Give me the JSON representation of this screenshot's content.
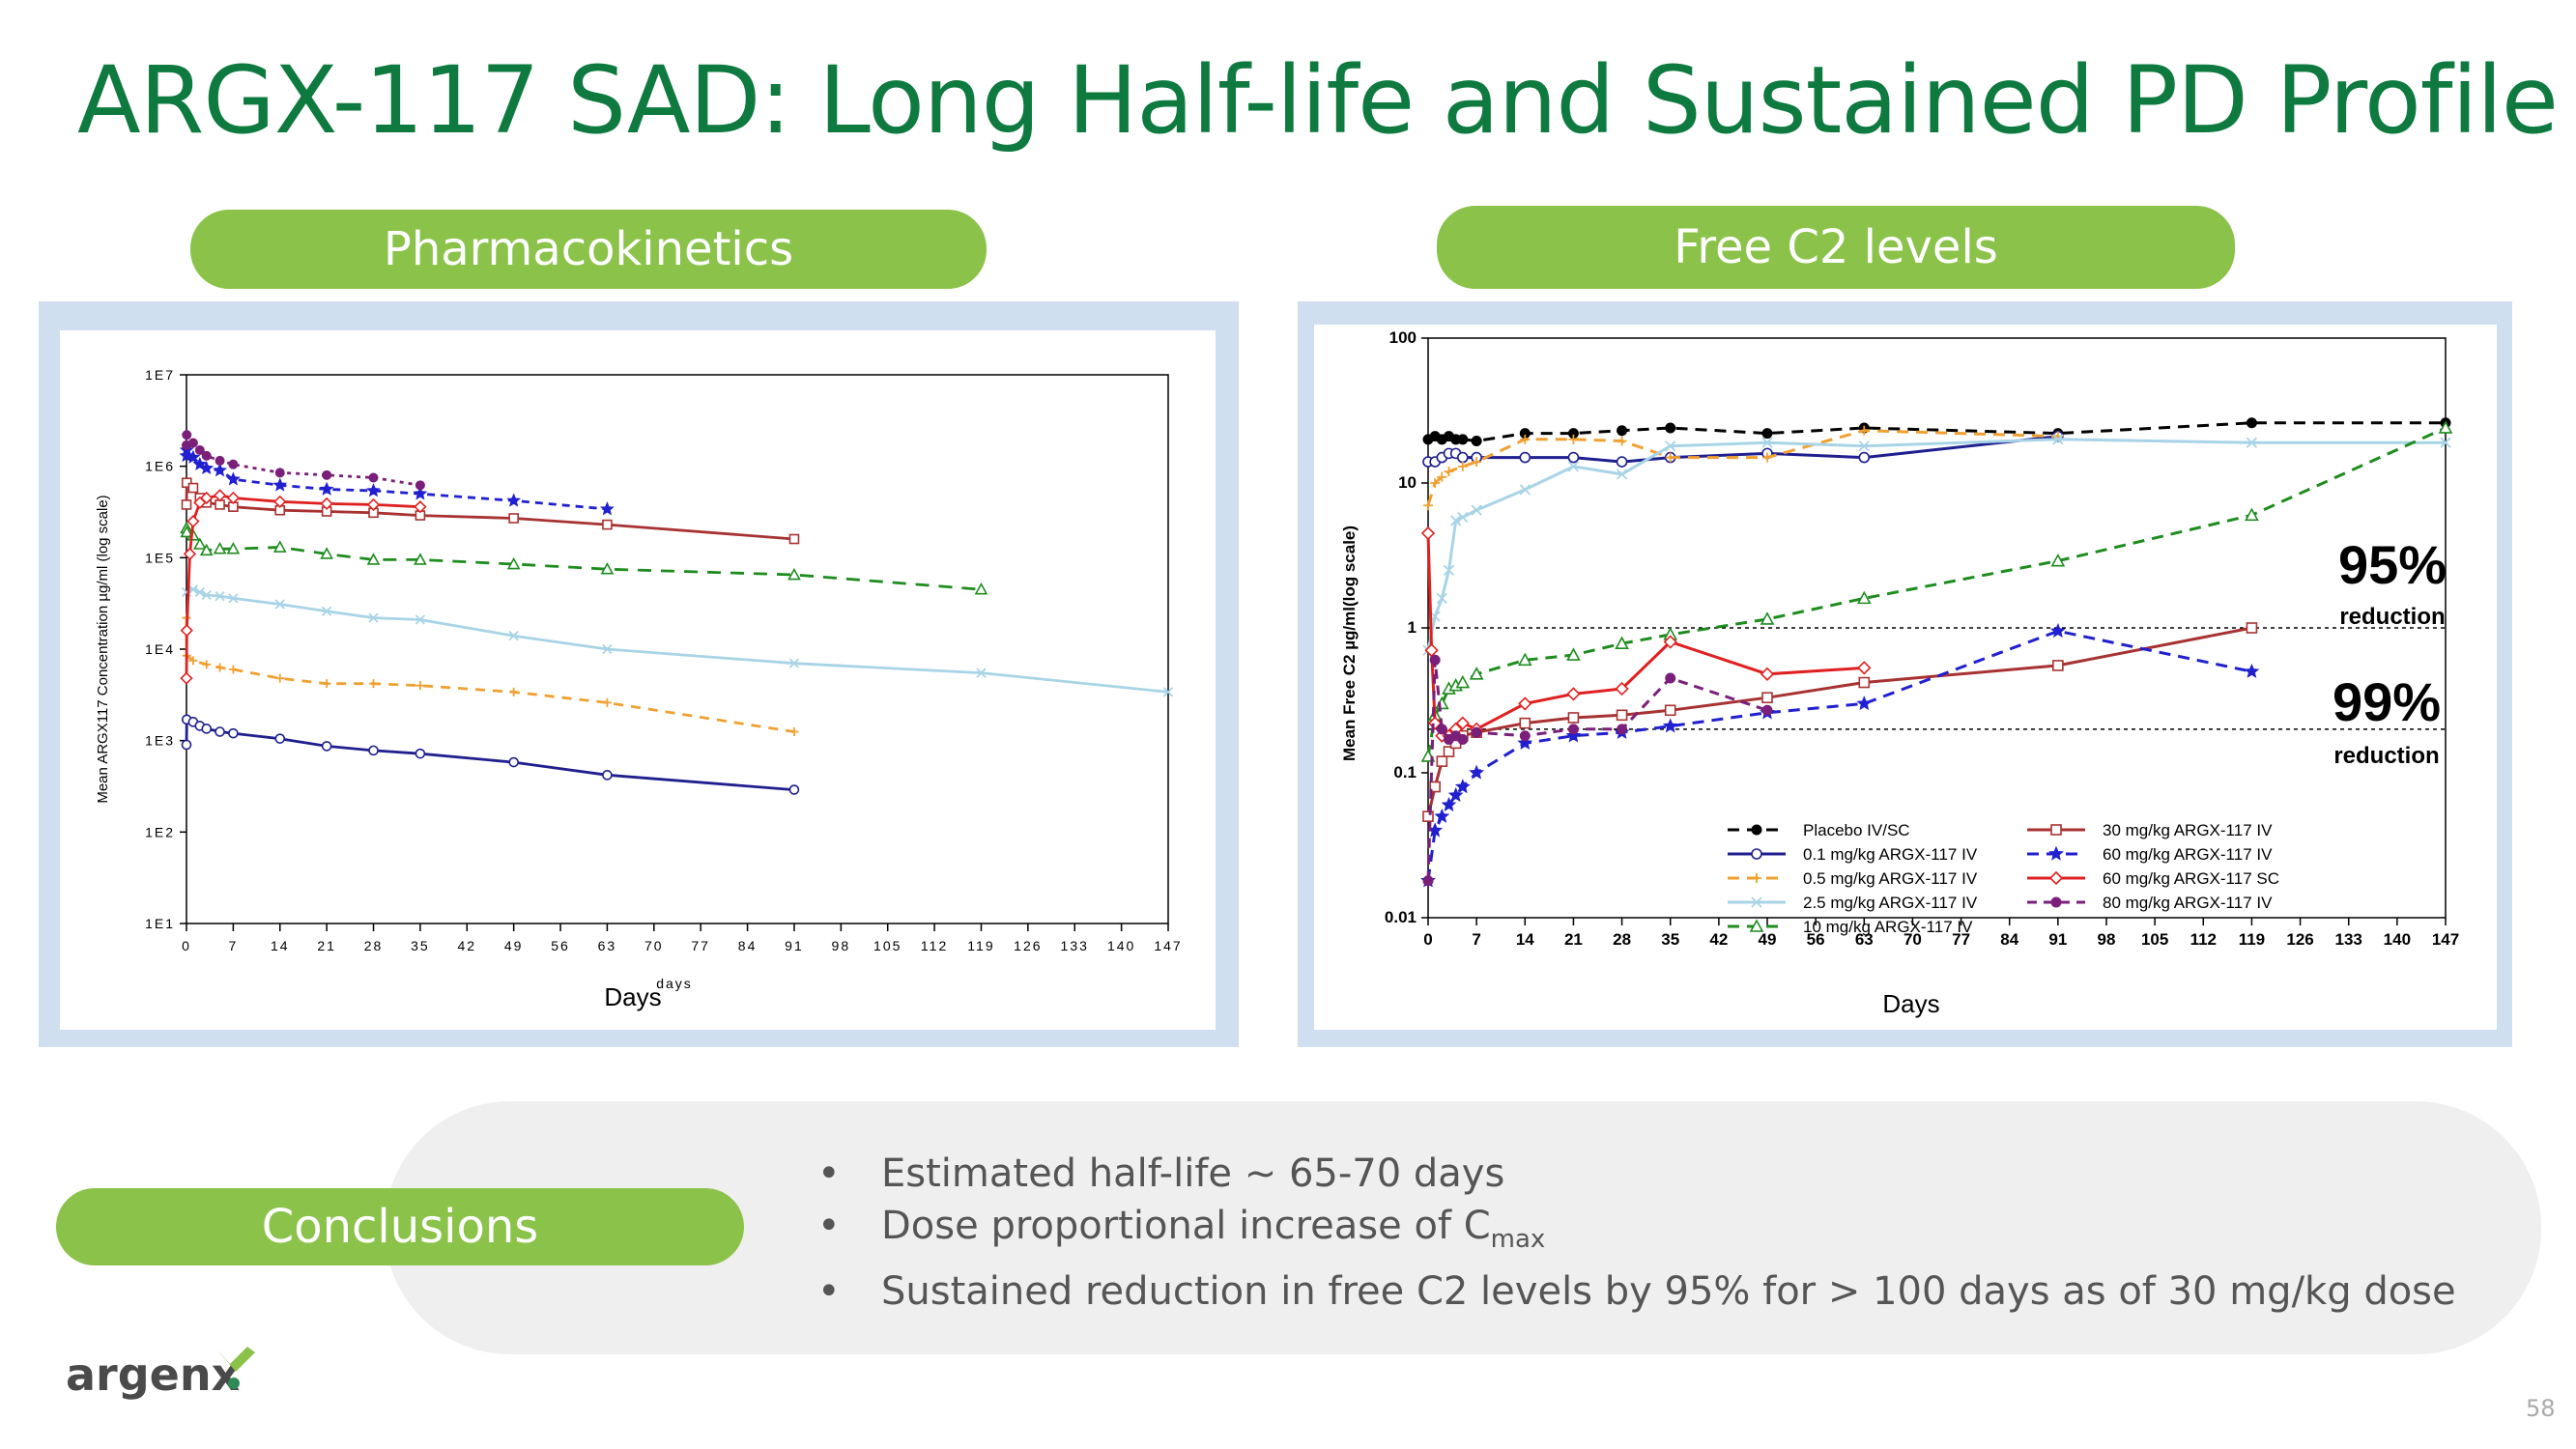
{
  "title": "ARGX-117 SAD: Long Half-life and Sustained PD Profile",
  "pk_header": "Pharmacokinetics",
  "c2_header": "Free C2 levels",
  "conclusions_header": "Conclusions",
  "bullets": {
    "b1": "Estimated half-life ~ 65-70 days",
    "b2_prefix": "Dose proportional increase of C",
    "b2_sub": "max",
    "b3": "Sustained reduction in free C2 levels by 95% for > 100 days as of 30 mg/kg dose"
  },
  "logo_text": "argenx",
  "page_number": "58",
  "colors": {
    "title": "#0e7a3f",
    "pill": "#8bc34a",
    "frame": "#cfdff0",
    "placebo": "#000000",
    "d01": "#1f1f8f",
    "d05": "#f0a030",
    "d25": "#a8d4e6",
    "d10": "#1e8c1e",
    "d30": "#a83232",
    "d60iv": "#2020d0",
    "d60sc": "#e02020",
    "d80": "#7a1f7a"
  },
  "chart_data": [
    {
      "type": "line",
      "id": "pk",
      "ylabel": "Mean ARGX117 Concentration µg/ml (log scale)",
      "xlabel_small": "days",
      "xlabel": "Days",
      "yscale": "log",
      "ylim": [
        10,
        10000000
      ],
      "xlim": [
        0,
        147
      ],
      "yticks": [
        {
          "v": 10,
          "label": "1E1"
        },
        {
          "v": 100,
          "label": "1E2"
        },
        {
          "v": 1000,
          "label": "1E3"
        },
        {
          "v": 10000,
          "label": "1E4"
        },
        {
          "v": 100000,
          "label": "1E5"
        },
        {
          "v": 1000000,
          "label": "1E6"
        },
        {
          "v": 10000000,
          "label": "1E7"
        }
      ],
      "xticks": [
        0,
        7,
        14,
        21,
        28,
        35,
        42,
        49,
        56,
        63,
        70,
        77,
        84,
        91,
        98,
        105,
        112,
        119,
        126,
        133,
        140,
        147
      ],
      "series": [
        {
          "name": "0.1 mg/kg ARGX-117 IV",
          "color": "#1f1f8f",
          "dash": "",
          "marker": "circle",
          "x": [
            0,
            0.04,
            1,
            2,
            3,
            5,
            7,
            14,
            21,
            28,
            35,
            49,
            63,
            91
          ],
          "y": [
            900,
            1700,
            1600,
            1450,
            1350,
            1250,
            1200,
            1050,
            870,
            780,
            720,
            580,
            420,
            290
          ]
        },
        {
          "name": "0.5 mg/kg ARGX-117 IV",
          "color": "#f0a030",
          "dash": "10,8",
          "marker": "plus",
          "x": [
            0,
            0.04,
            1,
            3,
            5,
            7,
            14,
            21,
            28,
            35,
            49,
            63,
            91
          ],
          "y": [
            22000,
            8500,
            7500,
            6800,
            6300,
            6000,
            4800,
            4200,
            4200,
            4000,
            3400,
            2600,
            1250
          ]
        },
        {
          "name": "2.5 mg/kg ARGX-117 IV",
          "color": "#a8d4e6",
          "dash": "",
          "marker": "x",
          "x": [
            0,
            1,
            2,
            3,
            5,
            7,
            14,
            21,
            28,
            35,
            49,
            63,
            91,
            119,
            147
          ],
          "y": [
            42000,
            45000,
            42000,
            39000,
            38000,
            36000,
            31000,
            26000,
            22000,
            21000,
            14000,
            10000,
            7000,
            5500,
            3400
          ]
        },
        {
          "name": "10 mg/kg ARGX-117 IV",
          "color": "#1e8c1e",
          "dash": "14,10",
          "marker": "triangle",
          "x": [
            0,
            0.04,
            1,
            2,
            3,
            5,
            7,
            14,
            21,
            28,
            35,
            49,
            63,
            91,
            119
          ],
          "y": [
            210000,
            190000,
            175000,
            140000,
            120000,
            125000,
            125000,
            130000,
            110000,
            95000,
            95000,
            85000,
            75000,
            65000,
            45000
          ]
        },
        {
          "name": "30 mg/kg ARGX-117 IV",
          "color": "#a83232",
          "dash": "",
          "marker": "square",
          "x": [
            0,
            0.04,
            1,
            2,
            3,
            5,
            7,
            14,
            21,
            28,
            35,
            49,
            63,
            91
          ],
          "y": [
            380000,
            660000,
            580000,
            450000,
            400000,
            380000,
            360000,
            330000,
            320000,
            310000,
            290000,
            270000,
            230000,
            160000
          ]
        },
        {
          "name": "60 mg/kg ARGX-117 IV",
          "color": "#2020d0",
          "dash": "8,6",
          "marker": "star",
          "x": [
            0,
            0.04,
            1,
            2,
            3,
            5,
            7,
            14,
            21,
            28,
            35,
            49,
            63
          ],
          "y": [
            1300000,
            1500000,
            1250000,
            1050000,
            950000,
            900000,
            720000,
            620000,
            560000,
            540000,
            500000,
            420000,
            340000
          ]
        },
        {
          "name": "60 mg/kg ARGX-117 SC",
          "color": "#e02020",
          "dash": "",
          "marker": "diamond",
          "x": [
            0,
            0.04,
            0.5,
            1,
            2,
            3,
            5,
            7,
            14,
            21,
            28,
            35
          ],
          "y": [
            4800,
            16000,
            110000,
            250000,
            400000,
            450000,
            480000,
            450000,
            410000,
            390000,
            380000,
            360000
          ]
        },
        {
          "name": "80 mg/kg ARGX-117 IV",
          "color": "#7a1f7a",
          "dash": "4,5",
          "marker": "dot",
          "x": [
            0,
            0.04,
            1,
            2,
            3,
            5,
            7,
            14,
            21,
            28,
            35
          ],
          "y": [
            1700000,
            2200000,
            1800000,
            1500000,
            1300000,
            1150000,
            1050000,
            850000,
            800000,
            750000,
            620000
          ]
        }
      ]
    },
    {
      "type": "line",
      "id": "c2",
      "ylabel": "Mean Free C2 µg/ml(log scale)",
      "xlabel": "Days",
      "yscale": "log",
      "ylim": [
        0.01,
        100
      ],
      "xlim": [
        0,
        147
      ],
      "yticks": [
        {
          "v": 0.01,
          "label": "0.01"
        },
        {
          "v": 0.1,
          "label": "0.1"
        },
        {
          "v": 1,
          "label": "1"
        },
        {
          "v": 10,
          "label": "10"
        },
        {
          "v": 100,
          "label": "100"
        }
      ],
      "xticks": [
        0,
        7,
        14,
        21,
        28,
        35,
        42,
        49,
        56,
        63,
        70,
        77,
        84,
        91,
        98,
        105,
        112,
        119,
        126,
        133,
        140,
        147
      ],
      "reference_lines": [
        {
          "y": 1
        },
        {
          "y": 0.2
        }
      ],
      "annotations": [
        {
          "big": "95%",
          "small": "reduction"
        },
        {
          "big": "99%",
          "small": "reduction"
        }
      ],
      "series": [
        {
          "name": "Placebo IV/SC",
          "color": "#000000",
          "dash": "12,8",
          "marker": "dot",
          "x": [
            0,
            1,
            2,
            3,
            4,
            5,
            7,
            14,
            21,
            28,
            35,
            49,
            63,
            91,
            119,
            147
          ],
          "y": [
            20,
            21,
            20,
            21,
            20,
            20,
            19.5,
            22,
            22,
            23,
            24,
            22,
            24,
            22,
            26,
            26
          ]
        },
        {
          "name": "0.1 mg/kg ARGX-117 IV",
          "color": "#1f1f8f",
          "dash": "",
          "marker": "circle",
          "x": [
            0,
            1,
            2,
            3,
            4,
            5,
            7,
            14,
            21,
            28,
            35,
            49,
            63,
            91
          ],
          "y": [
            14,
            14,
            15,
            16,
            16,
            15,
            15,
            15,
            15,
            14,
            15,
            16,
            15,
            21
          ]
        },
        {
          "name": "0.5 mg/kg ARGX-117 IV",
          "color": "#f0a030",
          "dash": "12,8",
          "marker": "plus",
          "x": [
            0,
            1,
            2,
            3,
            5,
            7,
            14,
            21,
            28,
            35,
            49,
            63,
            91
          ],
          "y": [
            7,
            10,
            11,
            12,
            13,
            14,
            20,
            20,
            19.5,
            15,
            15,
            23,
            21
          ]
        },
        {
          "name": "2.5 mg/kg ARGX-117 IV",
          "color": "#a8d4e6",
          "dash": "",
          "marker": "x",
          "x": [
            0,
            1,
            2,
            3,
            4,
            5,
            7,
            14,
            21,
            28,
            35,
            49,
            63,
            91,
            119,
            147
          ],
          "y": [
            0.7,
            1.2,
            1.6,
            2.5,
            5.5,
            5.8,
            6.5,
            9,
            13,
            11.5,
            18,
            19,
            18,
            20,
            19,
            19
          ]
        },
        {
          "name": "10 mg/kg ARGX-117 IV",
          "color": "#1e8c1e",
          "dash": "12,8",
          "marker": "triangle",
          "x": [
            0,
            1,
            2,
            3,
            4,
            5,
            7,
            14,
            21,
            28,
            35,
            49,
            63,
            91,
            119,
            147
          ],
          "y": [
            0.13,
            0.25,
            0.3,
            0.38,
            0.4,
            0.42,
            0.48,
            0.6,
            0.65,
            0.78,
            0.9,
            1.15,
            1.6,
            2.9,
            6,
            24
          ]
        },
        {
          "name": "30 mg/kg ARGX-117 IV",
          "color": "#a83232",
          "dash": "",
          "marker": "square",
          "x": [
            0,
            1,
            2,
            3,
            4,
            5,
            7,
            14,
            21,
            28,
            35,
            49,
            63,
            91,
            119
          ],
          "y": [
            0.05,
            0.08,
            0.12,
            0.14,
            0.16,
            0.18,
            0.19,
            0.22,
            0.24,
            0.25,
            0.27,
            0.33,
            0.42,
            0.55,
            1.0
          ]
        },
        {
          "name": "60 mg/kg ARGX-117 IV",
          "color": "#2020d0",
          "dash": "12,8",
          "marker": "star",
          "x": [
            0,
            1,
            2,
            3,
            4,
            5,
            7,
            14,
            21,
            28,
            35,
            49,
            63,
            91,
            119
          ],
          "y": [
            0.018,
            0.04,
            0.05,
            0.06,
            0.07,
            0.08,
            0.1,
            0.16,
            0.18,
            0.19,
            0.21,
            0.26,
            0.3,
            0.95,
            0.5
          ]
        },
        {
          "name": "60 mg/kg ARGX-117 SC",
          "color": "#e02020",
          "dash": "",
          "marker": "diamond",
          "x": [
            0,
            0.5,
            1,
            2,
            3,
            4,
            5,
            7,
            14,
            21,
            28,
            35,
            49,
            63
          ],
          "y": [
            4.5,
            0.7,
            0.22,
            0.18,
            0.18,
            0.2,
            0.22,
            0.2,
            0.3,
            0.35,
            0.38,
            0.8,
            0.48,
            0.53
          ]
        },
        {
          "name": "80 mg/kg ARGX-117 IV",
          "color": "#7a1f7a",
          "dash": "10,7",
          "marker": "dot",
          "x": [
            0,
            1,
            2,
            3,
            4,
            5,
            7,
            14,
            21,
            28,
            35,
            49
          ],
          "y": [
            0.018,
            0.6,
            0.2,
            0.17,
            0.18,
            0.17,
            0.19,
            0.18,
            0.2,
            0.2,
            0.45,
            0.27
          ]
        }
      ],
      "legend": [
        [
          "Placebo IV/SC",
          "30 mg/kg ARGX-117 IV"
        ],
        [
          "0.1 mg/kg ARGX-117 IV",
          "60 mg/kg ARGX-117 IV"
        ],
        [
          "0.5 mg/kg ARGX-117 IV",
          "60 mg/kg ARGX-117 SC"
        ],
        [
          "2.5 mg/kg ARGX-117 IV",
          "80 mg/kg ARGX-117 IV"
        ],
        [
          "10 mg/kg ARGX-117 IV",
          ""
        ]
      ]
    }
  ]
}
